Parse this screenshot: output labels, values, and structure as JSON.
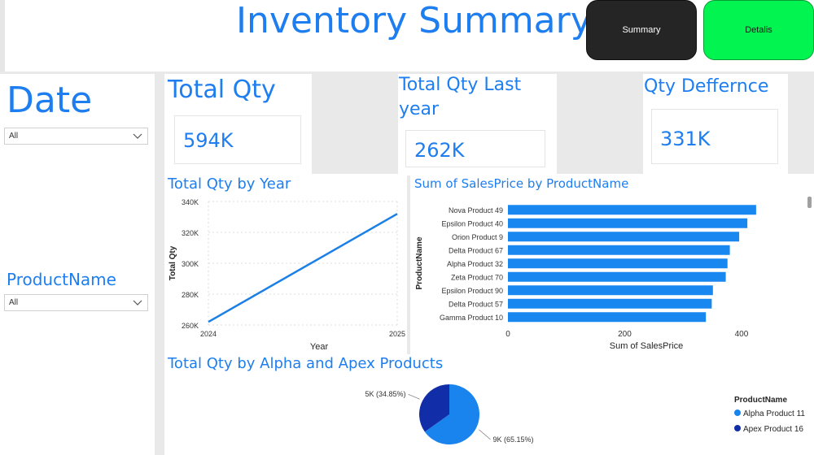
{
  "header": {
    "title": "Inventory Summary",
    "summary_label": "Summary",
    "details_label": "Detalis"
  },
  "slicers": {
    "date": {
      "title": "Date",
      "value": "All"
    },
    "product": {
      "title": "ProductName",
      "value": "All"
    }
  },
  "kpis": [
    {
      "title": "Total Qty",
      "value": "594K"
    },
    {
      "title": "Total Qty Last year",
      "value": "262K"
    },
    {
      "title": "Qty Deffernce",
      "value": "331K"
    }
  ],
  "colors": {
    "accent": "#1e7ef0",
    "bar": "#1888f0",
    "line": "#1a7fe6",
    "pie_alpha": "#1a84ee",
    "pie_apex": "#122da8",
    "summary_button": "#252525",
    "details_button": "#02f451"
  },
  "chart_data": [
    {
      "type": "line",
      "title": "Total Qty by Year",
      "xlabel": "Year",
      "ylabel": "Total Qty",
      "x": [
        "2024",
        "2025"
      ],
      "values": [
        262000,
        332000
      ],
      "y_ticks": [
        "260K",
        "280K",
        "300K",
        "320K",
        "340K"
      ],
      "ylim": [
        260000,
        340000
      ],
      "grid": true
    },
    {
      "type": "bar",
      "orientation": "horizontal",
      "title": "Sum of SalesPrice by ProductName",
      "xlabel": "Sum of SalesPrice",
      "ylabel": "ProductName",
      "categories": [
        "Nova Product 49",
        "Epsilon Product 40",
        "Orion Product 9",
        "Delta Product 67",
        "Alpha Product 32",
        "Zeta Product 70",
        "Epsilon Product 90",
        "Delta Product 57",
        "Gamma Product 10"
      ],
      "values": [
        425,
        410,
        396,
        380,
        376,
        373,
        351,
        349,
        339
      ],
      "x_ticks": [
        "0",
        "200",
        "400"
      ],
      "xlim": [
        0,
        460
      ]
    },
    {
      "type": "pie",
      "title": "Total Qty by Alpha and Apex Products",
      "legend_title": "ProductName",
      "legend_position": "right",
      "slices": [
        {
          "name": "Alpha Product 11",
          "label": "9K (65.15%)",
          "percent": 65.15
        },
        {
          "name": "Apex Product 16",
          "label": "5K (34.85%)",
          "percent": 34.85
        }
      ]
    }
  ]
}
